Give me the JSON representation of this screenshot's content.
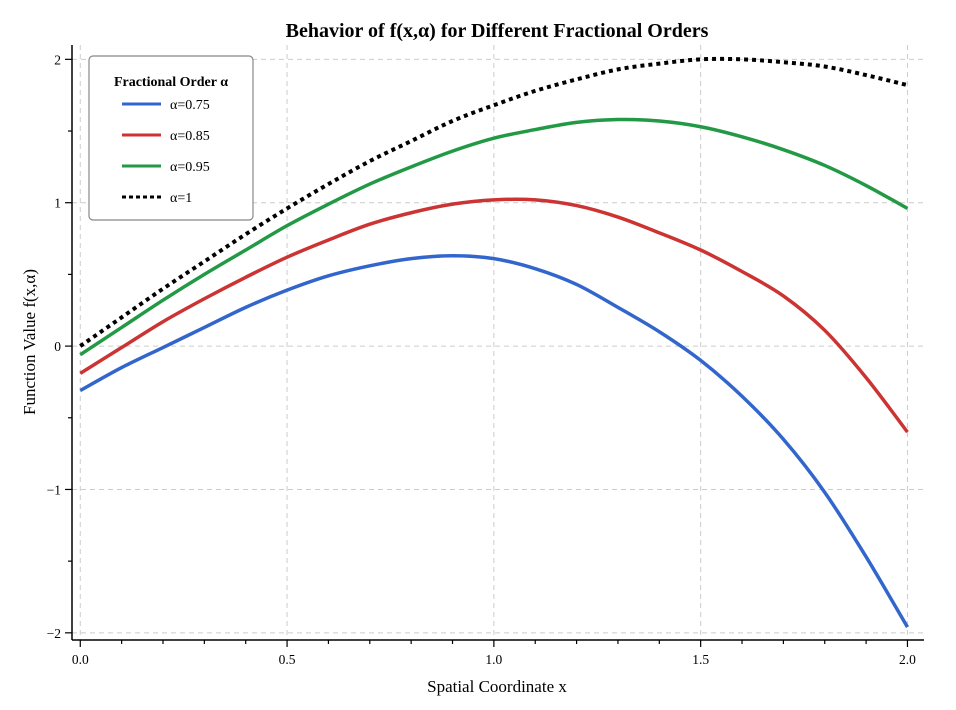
{
  "chart_data": {
    "type": "line",
    "title": "Behavior of f(x,α) for Different Fractional Orders",
    "xlabel": "Spatial Coordinate x",
    "ylabel": "Function Value f(x,α)",
    "xlim": [
      -0.02,
      2.04
    ],
    "ylim": [
      -2.05,
      2.1
    ],
    "xticks": [
      0.0,
      0.5,
      1.0,
      1.5,
      2.0
    ],
    "xtick_labels": [
      "0.0",
      "0.5",
      "1.0",
      "1.5",
      "2.0"
    ],
    "yticks": [
      -2,
      -1,
      0,
      1,
      2
    ],
    "ytick_labels": [
      "−2",
      "−1",
      "0",
      "1",
      "2"
    ],
    "grid": true,
    "legend": {
      "title": "Fractional Order α",
      "position": "top-left"
    },
    "series": [
      {
        "name": "α=0.75",
        "color": "#3366cc",
        "dashed": false,
        "x": [
          0.0,
          0.1,
          0.2,
          0.3,
          0.4,
          0.5,
          0.6,
          0.7,
          0.8,
          0.9,
          1.0,
          1.1,
          1.2,
          1.3,
          1.4,
          1.5,
          1.6,
          1.7,
          1.8,
          1.9,
          2.0
        ],
        "y": [
          -0.31,
          -0.15,
          -0.01,
          0.13,
          0.27,
          0.39,
          0.49,
          0.56,
          0.61,
          0.63,
          0.61,
          0.54,
          0.43,
          0.27,
          0.1,
          -0.1,
          -0.35,
          -0.65,
          -1.02,
          -1.47,
          -1.96
        ]
      },
      {
        "name": "α=0.85",
        "color": "#cc3333",
        "dashed": false,
        "x": [
          0.0,
          0.1,
          0.2,
          0.3,
          0.4,
          0.5,
          0.6,
          0.7,
          0.8,
          0.9,
          1.0,
          1.1,
          1.2,
          1.3,
          1.4,
          1.5,
          1.6,
          1.7,
          1.8,
          1.9,
          2.0
        ],
        "y": [
          -0.19,
          -0.01,
          0.17,
          0.33,
          0.48,
          0.62,
          0.74,
          0.85,
          0.93,
          0.99,
          1.02,
          1.02,
          0.98,
          0.9,
          0.79,
          0.67,
          0.52,
          0.35,
          0.11,
          -0.22,
          -0.6
        ]
      },
      {
        "name": "α=0.95",
        "color": "#229944",
        "dashed": false,
        "x": [
          0.0,
          0.1,
          0.2,
          0.3,
          0.4,
          0.5,
          0.6,
          0.7,
          0.8,
          0.9,
          1.0,
          1.1,
          1.2,
          1.3,
          1.4,
          1.5,
          1.6,
          1.7,
          1.8,
          1.9,
          2.0
        ],
        "y": [
          -0.06,
          0.13,
          0.32,
          0.5,
          0.67,
          0.84,
          0.99,
          1.13,
          1.25,
          1.36,
          1.45,
          1.51,
          1.56,
          1.58,
          1.57,
          1.53,
          1.46,
          1.37,
          1.26,
          1.12,
          0.96
        ]
      },
      {
        "name": "α=1",
        "color": "#000000",
        "dashed": true,
        "x": [
          0.0,
          0.1,
          0.2,
          0.3,
          0.4,
          0.5,
          0.6,
          0.7,
          0.8,
          0.9,
          1.0,
          1.1,
          1.2,
          1.3,
          1.4,
          1.5,
          1.6,
          1.7,
          1.8,
          1.9,
          2.0
        ],
        "y": [
          0.0,
          0.2,
          0.4,
          0.59,
          0.78,
          0.96,
          1.13,
          1.29,
          1.43,
          1.57,
          1.68,
          1.78,
          1.86,
          1.93,
          1.97,
          2.0,
          2.0,
          1.98,
          1.95,
          1.89,
          1.82
        ]
      }
    ]
  }
}
